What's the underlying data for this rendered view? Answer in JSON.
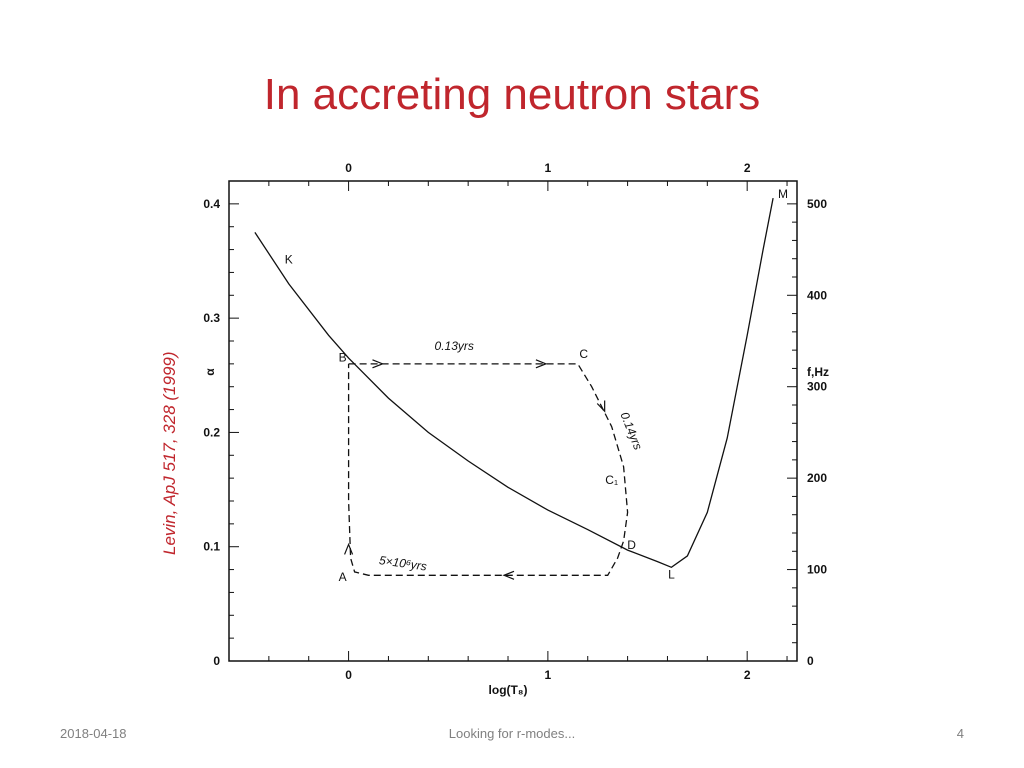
{
  "slide": {
    "title": "In accreting neutron stars",
    "citation": "Levin, ApJ 517, 328 (1999)"
  },
  "footer": {
    "date": "2018-04-18",
    "center": "Looking for r-modes...",
    "page": "4"
  },
  "chart_data": {
    "type": "line",
    "xlabel": "log(T₈)",
    "ylabel_left": "α",
    "ylabel_right": "f,Hz",
    "xlim": [
      -0.6,
      2.25
    ],
    "ylim": [
      0,
      0.42
    ],
    "x_ticks_bottom": [
      0,
      1,
      2
    ],
    "x_ticks_top": [
      0,
      1,
      2
    ],
    "y_ticks_left": [
      0,
      0.1,
      0.2,
      0.3,
      0.4
    ],
    "y_tick_labels_left": [
      "0",
      "0.1",
      "0.2",
      "0.3",
      "0.4"
    ],
    "y_ticks_right": [
      0,
      100,
      200,
      300,
      400,
      500
    ],
    "y_right_to_left_scale": 0.0008,
    "series": [
      {
        "style": "solid",
        "x": [
          -0.47,
          -0.3,
          -0.1,
          0.0,
          0.2,
          0.4,
          0.6,
          0.8,
          1.0,
          1.2,
          1.4,
          1.55,
          1.62,
          1.7,
          1.8,
          1.9,
          2.0,
          2.08,
          2.13
        ],
        "y": [
          0.375,
          0.33,
          0.285,
          0.265,
          0.23,
          0.2,
          0.175,
          0.152,
          0.132,
          0.115,
          0.097,
          0.087,
          0.082,
          0.092,
          0.13,
          0.195,
          0.285,
          0.36,
          0.405
        ]
      },
      {
        "style": "dashed",
        "x": [
          0.0,
          1.15,
          1.22,
          1.32,
          1.38,
          1.4,
          1.38,
          1.35,
          1.3,
          0.8,
          0.1,
          0.03,
          0.01,
          0.0,
          0.0
        ],
        "y": [
          0.26,
          0.26,
          0.24,
          0.205,
          0.17,
          0.13,
          0.105,
          0.09,
          0.075,
          0.075,
          0.075,
          0.078,
          0.09,
          0.14,
          0.26
        ]
      }
    ],
    "point_labels": [
      {
        "label": "K",
        "x": -0.3,
        "y": 0.348
      },
      {
        "label": "B",
        "x": -0.03,
        "y": 0.262
      },
      {
        "label": "C",
        "x": 1.18,
        "y": 0.265
      },
      {
        "label": "C₁",
        "x": 1.32,
        "y": 0.155
      },
      {
        "label": "D",
        "x": 1.42,
        "y": 0.098
      },
      {
        "label": "L",
        "x": 1.62,
        "y": 0.072
      },
      {
        "label": "A",
        "x": -0.03,
        "y": 0.07
      },
      {
        "label": "M",
        "x": 2.18,
        "y": 0.405
      }
    ],
    "annotations": [
      {
        "text": "0.13yrs",
        "x": 0.53,
        "y": 0.272
      },
      {
        "text": "0.14yrs",
        "x": 1.4,
        "y": 0.2
      },
      {
        "text": "5×10⁶yrs",
        "x": 0.27,
        "y": 0.082
      }
    ]
  }
}
